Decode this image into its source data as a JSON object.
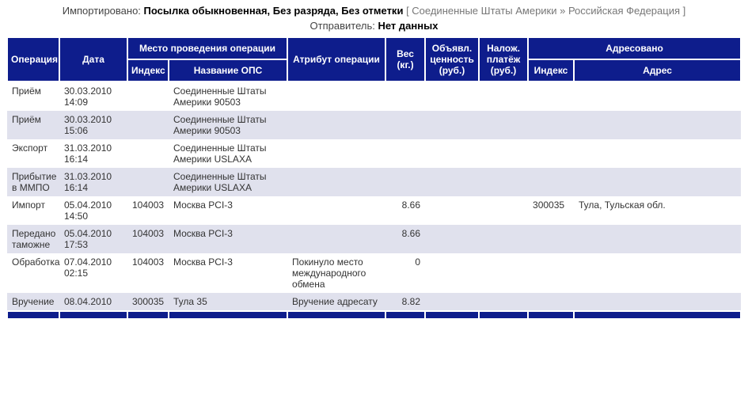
{
  "header": {
    "imported_label": "Импортировано:",
    "imported_value": "Посылка обыкновенная, Без разряда, Без отметки",
    "route": "[ Соединенные Штаты Америки » Российская Федерация ]",
    "sender_label": "Отправитель:",
    "sender_value": "Нет данных"
  },
  "columns": {
    "op": "Операция",
    "date": "Дата",
    "place_group": "Место проведения операции",
    "idx": "Индекс",
    "ops_name": "Название ОПС",
    "attribute": "Атрибут операции",
    "weight": "Вес (кг.)",
    "declared": "Объявл. ценность (руб.)",
    "nalozh": "Налож. платёж (руб.)",
    "addr_group": "Адресовано",
    "addr_idx": "Индекс",
    "addr": "Адрес"
  },
  "rows": [
    {
      "op": "Приём",
      "date": "30.03.2010 14:09",
      "idx": "",
      "ops": "Соединенные Штаты Америки 90503",
      "attr": "",
      "wt": "",
      "val": "",
      "nal": "",
      "aidx": "",
      "addr": ""
    },
    {
      "op": "Приём",
      "date": "30.03.2010 15:06",
      "idx": "",
      "ops": "Соединенные Штаты Америки 90503",
      "attr": "",
      "wt": "",
      "val": "",
      "nal": "",
      "aidx": "",
      "addr": ""
    },
    {
      "op": "Экспорт",
      "date": "31.03.2010 16:14",
      "idx": "",
      "ops": "Соединенные Штаты Америки USLAXA",
      "attr": "",
      "wt": "",
      "val": "",
      "nal": "",
      "aidx": "",
      "addr": ""
    },
    {
      "op": "Прибытие в ММПО",
      "date": "31.03.2010 16:14",
      "idx": "",
      "ops": "Соединенные Штаты Америки USLAXA",
      "attr": "",
      "wt": "",
      "val": "",
      "nal": "",
      "aidx": "",
      "addr": ""
    },
    {
      "op": "Импорт",
      "date": "05.04.2010 14:50",
      "idx": "104003",
      "ops": "Москва PCI-3",
      "attr": "",
      "wt": "8.66",
      "val": "",
      "nal": "",
      "aidx": "300035",
      "addr": "Тула, Тульская обл."
    },
    {
      "op": "Передано таможне",
      "date": "05.04.2010 17:53",
      "idx": "104003",
      "ops": "Москва PCI-3",
      "attr": "",
      "wt": "8.66",
      "val": "",
      "nal": "",
      "aidx": "",
      "addr": ""
    },
    {
      "op": "Обработка",
      "date": "07.04.2010 02:15",
      "idx": "104003",
      "ops": "Москва PCI-3",
      "attr": "Покинуло место международного обмена",
      "wt": "0",
      "val": "",
      "nal": "",
      "aidx": "",
      "addr": ""
    },
    {
      "op": "Вручение",
      "date": "08.04.2010",
      "idx": "300035",
      "ops": "Тула 35",
      "attr": "Вручение адресату",
      "wt": "8.82",
      "val": "",
      "nal": "",
      "aidx": "",
      "addr": ""
    }
  ],
  "colors": {
    "header_bg": "#0e1d8c",
    "row_alt_bg": "#e0e1ed",
    "row_bg": "#ffffff",
    "text": "#333333"
  }
}
